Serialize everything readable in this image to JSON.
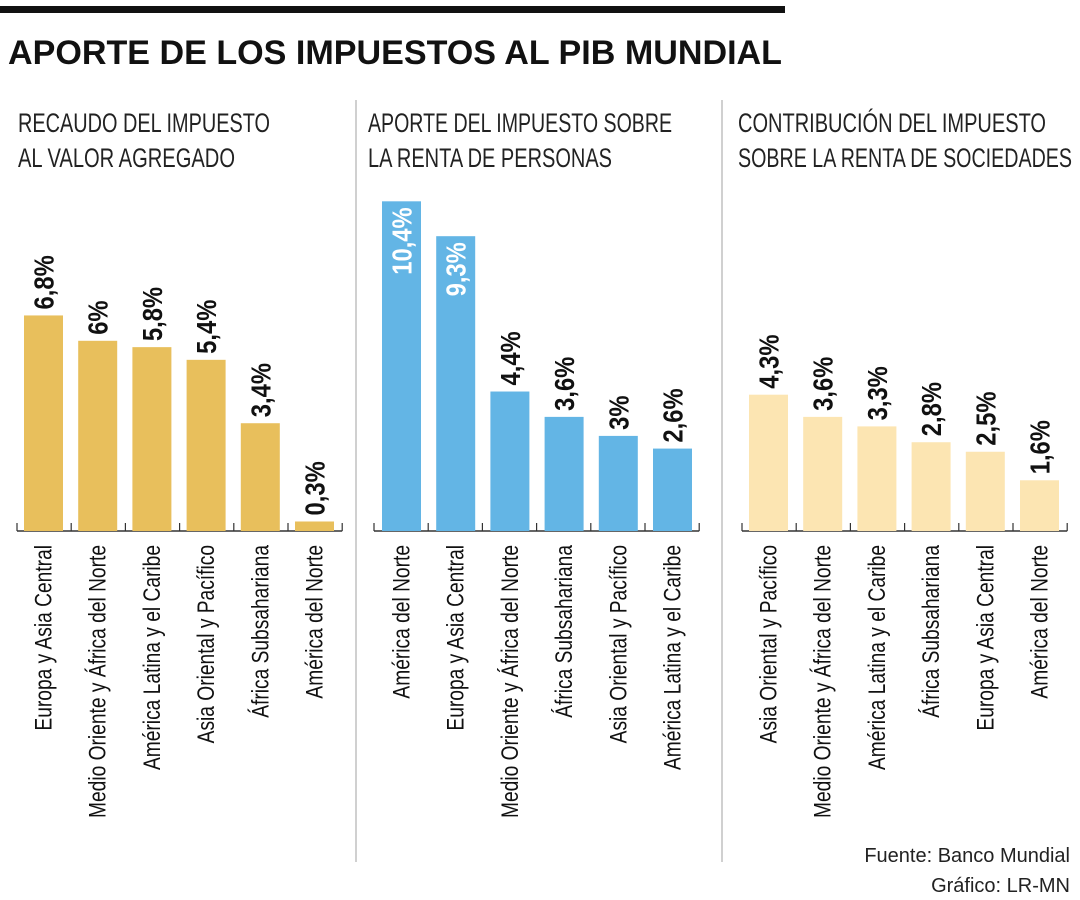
{
  "title": "APORTE DE LOS IMPUESTOS AL PIB MUNDIAL",
  "footer": {
    "source": "Fuente: Banco Mundial",
    "credit": "Gráfico: LR-MN"
  },
  "chart_data": [
    {
      "type": "bar",
      "title_lines": [
        "RECAUDO DEL IMPUESTO",
        "AL VALOR AGREGADO"
      ],
      "color": "#E8BF5C",
      "categories": [
        "Europa y Asia Central",
        "Medio Oriente y África del Norte",
        "América Latina y el Caribe",
        "Asia Oriental y Pacífico",
        "África Subsahariana",
        "América del Norte"
      ],
      "values": [
        6.8,
        6,
        5.8,
        5.4,
        3.4,
        0.3
      ],
      "labels": [
        "6,8%",
        "6%",
        "5,8%",
        "5,4%",
        "3,4%",
        "0,3%"
      ],
      "unit": "%"
    },
    {
      "type": "bar",
      "title_lines": [
        "APORTE DEL IMPUESTO SOBRE",
        "LA RENTA DE PERSONAS"
      ],
      "color": "#63B5E5",
      "categories": [
        "América del Norte",
        "Europa y Asia Central",
        "Medio Oriente y África del Norte",
        "África Subsahariana",
        "Asia Oriental y Pacífico",
        "América Latina y el Caribe"
      ],
      "values": [
        10.4,
        9.3,
        4.4,
        3.6,
        3,
        2.6
      ],
      "labels": [
        "10,4%",
        "9,3%",
        "4,4%",
        "3,6%",
        "3%",
        "2,6%"
      ],
      "unit": "%"
    },
    {
      "type": "bar",
      "title_lines": [
        "CONTRIBUCIÓN DEL IMPUESTO",
        "SOBRE LA RENTA DE SOCIEDADES"
      ],
      "color": "#FCE5B2",
      "categories": [
        "Asia Oriental y Pacífico",
        "Medio Oriente y África del Norte",
        "América Latina y el Caribe",
        "África Subsahariana",
        "Europa y Asia Central",
        "América del Norte"
      ],
      "values": [
        4.3,
        3.6,
        3.3,
        2.8,
        2.5,
        1.6
      ],
      "labels": [
        "4,3%",
        "3,6%",
        "3,3%",
        "2,8%",
        "2,5%",
        "1,6%"
      ],
      "unit": "%"
    }
  ]
}
